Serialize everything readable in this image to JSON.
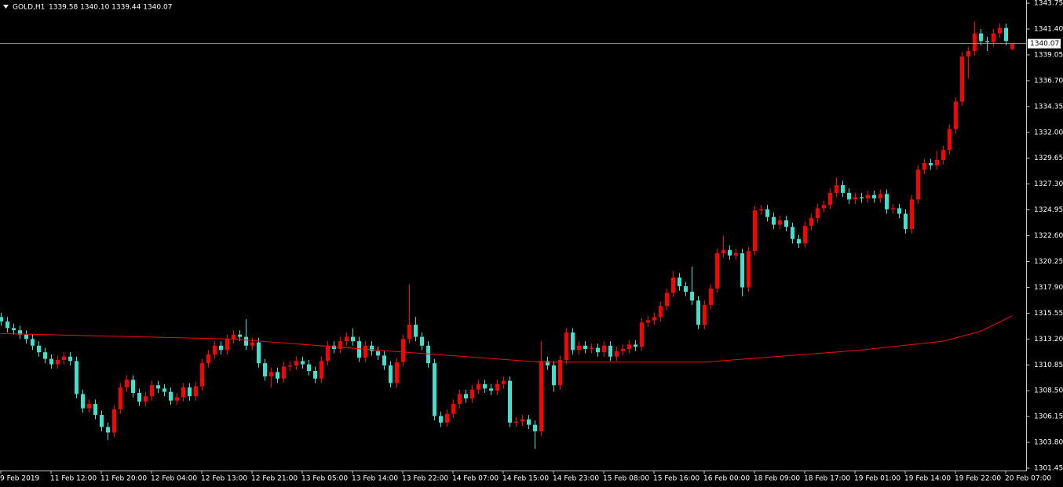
{
  "chart_data": {
    "type": "candlestick",
    "header": {
      "symbol": "GOLD,H1",
      "quote": "1339.58 1340.10 1339.44 1340.07"
    },
    "categories": [
      "9 Feb 2019",
      null,
      null,
      null,
      null,
      null,
      null,
      null,
      "11 Feb 12:00",
      null,
      null,
      null,
      null,
      null,
      null,
      null,
      "11 Feb 20:00",
      null,
      null,
      null,
      null,
      null,
      null,
      null,
      "12 Feb 04:00",
      null,
      null,
      null,
      null,
      null,
      null,
      null,
      "12 Feb 13:00",
      null,
      null,
      null,
      null,
      null,
      null,
      null,
      "12 Feb 21:00",
      null,
      null,
      null,
      null,
      null,
      null,
      null,
      "13 Feb 05:00",
      null,
      null,
      null,
      null,
      null,
      null,
      null,
      "13 Feb 14:00",
      null,
      null,
      null,
      null,
      null,
      null,
      null,
      "13 Feb 22:00",
      null,
      null,
      null,
      null,
      null,
      null,
      null,
      "14 Feb 07:00",
      null,
      null,
      null,
      null,
      null,
      null,
      null,
      "14 Feb 15:00",
      null,
      null,
      null,
      null,
      null,
      null,
      null,
      "14 Feb 23:00",
      null,
      null,
      null,
      null,
      null,
      null,
      null,
      "15 Feb 08:00",
      null,
      null,
      null,
      null,
      null,
      null,
      null,
      "15 Feb 16:00",
      null,
      null,
      null,
      null,
      null,
      null,
      null,
      "16 Feb 00:00",
      null,
      null,
      null,
      null,
      null,
      null,
      null,
      "18 Feb 09:00",
      null,
      null,
      null,
      null,
      null,
      null,
      null,
      "18 Feb 17:00",
      null,
      null,
      null,
      null,
      null,
      null,
      null,
      "19 Feb 01:00",
      null,
      null,
      null,
      null,
      null,
      null,
      null,
      "19 Feb 14:00",
      null,
      null,
      null,
      null,
      null,
      null,
      null,
      "19 Feb 22:00",
      null,
      null,
      null,
      null,
      null,
      null,
      null,
      "20 Feb 07:00",
      null
    ],
    "open": [
      1315.2,
      1314.8,
      1314.2,
      1314.0,
      1313.6,
      1313.2,
      1312.6,
      1312.0,
      1311.4,
      1310.9,
      1311.3,
      1311.6,
      1311.2,
      1308.2,
      1306.9,
      1307.3,
      1306.3,
      1305.2,
      1304.7,
      1306.8,
      1308.8,
      1309.5,
      1308.3,
      1307.5,
      1308.0,
      1309.0,
      1308.7,
      1308.4,
      1307.6,
      1307.9,
      1308.8,
      1308.0,
      1308.9,
      1311.0,
      1311.8,
      1312.6,
      1312.2,
      1313.2,
      1313.6,
      1313.4,
      1312.6,
      1312.9,
      1311.0,
      1309.8,
      1310.2,
      1309.6,
      1310.7,
      1310.8,
      1311.2,
      1310.9,
      1310.3,
      1309.6,
      1311.2,
      1312.6,
      1312.3,
      1313.0,
      1313.4,
      1313.0,
      1311.5,
      1312.6,
      1312.1,
      1311.7,
      1310.8,
      1309.2,
      1311.1,
      1313.2,
      1314.5,
      1313.4,
      1312.6,
      1311.0,
      1306.2,
      1305.6,
      1306.4,
      1307.3,
      1308.2,
      1307.8,
      1308.6,
      1309.1,
      1308.7,
      1308.5,
      1309.1,
      1309.4,
      1305.6,
      1305.7,
      1305.9,
      1305.4,
      1304.8,
      1311.2,
      1310.8,
      1309.0,
      1311.3,
      1313.8,
      1312.2,
      1312.6,
      1312.3,
      1312.4,
      1312.0,
      1312.6,
      1311.6,
      1312.1,
      1312.3,
      1312.7,
      1312.5,
      1314.7,
      1314.9,
      1315.2,
      1316.2,
      1317.4,
      1318.8,
      1318.0,
      1317.5,
      1316.7,
      1314.5,
      1316.3,
      1317.8,
      1321.0,
      1321.3,
      1320.8,
      1321.0,
      1317.9,
      1321.2,
      1324.9,
      1325.0,
      1324.3,
      1323.6,
      1324.0,
      1323.4,
      1322.3,
      1321.9,
      1323.5,
      1324.2,
      1325.1,
      1325.4,
      1326.5,
      1327.2,
      1326.5,
      1325.9,
      1326.1,
      1326.0,
      1326.3,
      1326.0,
      1326.4,
      1325.0,
      1325.1,
      1324.6,
      1323.2,
      1325.9,
      1328.6,
      1329.2,
      1329.0,
      1329.5,
      1330.4,
      1332.3,
      1334.8,
      1338.9,
      1339.4,
      1341.0,
      1340.3,
      1340.2,
      1341.0,
      1341.5,
      1339.58
    ],
    "high": [
      1315.6,
      1315.2,
      1314.6,
      1314.4,
      1314.0,
      1313.6,
      1313.0,
      1312.4,
      1311.8,
      1311.7,
      1312.0,
      1312.0,
      1311.6,
      1308.6,
      1307.7,
      1307.7,
      1306.7,
      1305.6,
      1307.2,
      1309.2,
      1309.9,
      1309.9,
      1308.7,
      1308.4,
      1309.4,
      1309.4,
      1309.1,
      1308.8,
      1308.3,
      1309.2,
      1309.2,
      1309.3,
      1311.4,
      1312.2,
      1313.0,
      1313.0,
      1313.6,
      1314.0,
      1314.0,
      1315.0,
      1313.3,
      1313.3,
      1311.4,
      1310.6,
      1310.6,
      1311.1,
      1311.2,
      1311.6,
      1311.6,
      1311.3,
      1310.7,
      1311.6,
      1313.0,
      1313.0,
      1313.4,
      1313.8,
      1314.2,
      1313.4,
      1313.0,
      1313.0,
      1312.5,
      1312.1,
      1311.2,
      1311.5,
      1313.6,
      1318.2,
      1315.2,
      1313.8,
      1313.0,
      1311.4,
      1306.6,
      1306.8,
      1307.7,
      1308.6,
      1308.6,
      1309.0,
      1309.5,
      1309.5,
      1309.1,
      1309.5,
      1309.8,
      1309.8,
      1306.1,
      1306.3,
      1306.3,
      1305.8,
      1313.0,
      1311.6,
      1311.2,
      1311.7,
      1314.2,
      1314.2,
      1313.0,
      1313.0,
      1312.8,
      1312.8,
      1313.0,
      1313.0,
      1312.5,
      1312.7,
      1313.1,
      1313.1,
      1315.1,
      1315.3,
      1315.6,
      1316.6,
      1317.8,
      1319.4,
      1319.2,
      1318.4,
      1319.8,
      1317.1,
      1316.7,
      1318.2,
      1321.4,
      1322.6,
      1321.7,
      1321.4,
      1321.4,
      1321.6,
      1325.3,
      1325.4,
      1325.4,
      1324.7,
      1324.4,
      1324.4,
      1323.8,
      1322.7,
      1323.9,
      1324.6,
      1325.5,
      1325.8,
      1326.9,
      1327.9,
      1327.6,
      1326.9,
      1326.5,
      1326.5,
      1326.7,
      1326.7,
      1326.8,
      1326.8,
      1325.5,
      1325.5,
      1325.0,
      1326.3,
      1329.0,
      1329.6,
      1329.6,
      1330.3,
      1330.8,
      1332.7,
      1335.2,
      1339.3,
      1339.8,
      1342.1,
      1341.4,
      1340.7,
      1341.4,
      1341.9,
      1341.9,
      1340.1
    ],
    "low": [
      1314.4,
      1313.8,
      1313.6,
      1313.2,
      1312.8,
      1312.2,
      1311.6,
      1311.0,
      1310.5,
      1310.5,
      1310.9,
      1310.8,
      1307.8,
      1306.5,
      1306.5,
      1305.9,
      1304.8,
      1304.0,
      1304.3,
      1306.4,
      1308.4,
      1307.9,
      1307.1,
      1307.1,
      1307.6,
      1308.3,
      1308.0,
      1307.2,
      1307.2,
      1307.5,
      1307.6,
      1307.6,
      1308.5,
      1310.6,
      1311.4,
      1311.8,
      1311.8,
      1312.8,
      1313.0,
      1312.2,
      1312.2,
      1310.6,
      1309.4,
      1308.8,
      1309.2,
      1309.2,
      1310.3,
      1310.4,
      1310.5,
      1309.9,
      1309.2,
      1309.2,
      1310.8,
      1311.9,
      1311.9,
      1312.6,
      1312.6,
      1311.1,
      1311.1,
      1311.7,
      1311.3,
      1310.4,
      1308.8,
      1308.8,
      1310.7,
      1312.8,
      1313.0,
      1312.2,
      1310.6,
      1305.8,
      1305.2,
      1305.2,
      1306.0,
      1306.9,
      1307.4,
      1307.4,
      1308.2,
      1308.3,
      1308.1,
      1308.1,
      1308.7,
      1305.2,
      1305.2,
      1305.3,
      1305.0,
      1303.2,
      1304.4,
      1310.4,
      1308.4,
      1308.6,
      1310.9,
      1311.8,
      1311.8,
      1311.9,
      1311.9,
      1311.6,
      1311.6,
      1311.2,
      1311.2,
      1311.7,
      1311.9,
      1312.1,
      1312.1,
      1314.3,
      1314.5,
      1314.8,
      1315.8,
      1317.0,
      1317.6,
      1317.1,
      1316.3,
      1314.1,
      1314.1,
      1315.9,
      1317.4,
      1320.6,
      1320.4,
      1320.4,
      1317.1,
      1317.5,
      1320.8,
      1324.5,
      1323.9,
      1323.2,
      1323.2,
      1323.0,
      1321.9,
      1321.5,
      1321.5,
      1323.1,
      1323.8,
      1324.7,
      1325.0,
      1326.1,
      1326.1,
      1325.5,
      1325.5,
      1325.6,
      1325.6,
      1325.6,
      1325.6,
      1324.6,
      1324.6,
      1324.2,
      1322.8,
      1322.8,
      1325.5,
      1328.2,
      1328.6,
      1328.6,
      1329.1,
      1330.0,
      1331.9,
      1334.4,
      1336.9,
      1339.0,
      1339.9,
      1339.4,
      1339.8,
      1340.6,
      1339.9,
      1339.44
    ],
    "close": [
      1314.8,
      1314.2,
      1314.0,
      1313.6,
      1313.2,
      1312.6,
      1312.0,
      1311.4,
      1310.9,
      1311.3,
      1311.6,
      1311.2,
      1308.2,
      1306.9,
      1307.3,
      1306.3,
      1305.2,
      1304.7,
      1306.8,
      1308.8,
      1309.5,
      1308.3,
      1307.5,
      1308.0,
      1309.0,
      1308.7,
      1308.4,
      1307.6,
      1307.9,
      1308.8,
      1308.0,
      1308.9,
      1311.0,
      1311.8,
      1312.6,
      1312.2,
      1313.2,
      1313.6,
      1313.4,
      1312.6,
      1312.9,
      1311.0,
      1309.8,
      1310.2,
      1309.6,
      1310.7,
      1310.8,
      1311.2,
      1310.9,
      1310.3,
      1309.6,
      1311.2,
      1312.6,
      1312.3,
      1313.0,
      1313.4,
      1313.0,
      1311.5,
      1312.6,
      1312.1,
      1311.7,
      1310.8,
      1309.2,
      1311.1,
      1313.2,
      1314.5,
      1313.4,
      1312.6,
      1311.0,
      1306.2,
      1305.6,
      1306.4,
      1307.3,
      1308.2,
      1307.8,
      1308.6,
      1309.1,
      1308.7,
      1308.5,
      1309.1,
      1309.4,
      1305.6,
      1305.7,
      1305.9,
      1305.4,
      1304.8,
      1311.2,
      1310.8,
      1309.0,
      1311.3,
      1313.8,
      1312.2,
      1312.6,
      1312.3,
      1312.4,
      1312.0,
      1312.6,
      1311.6,
      1312.1,
      1312.3,
      1312.7,
      1312.5,
      1314.7,
      1314.9,
      1315.2,
      1316.2,
      1317.4,
      1318.8,
      1318.0,
      1317.5,
      1316.7,
      1314.5,
      1316.3,
      1317.8,
      1321.0,
      1321.3,
      1320.8,
      1321.0,
      1317.9,
      1321.2,
      1324.9,
      1325.0,
      1324.3,
      1323.6,
      1324.0,
      1323.4,
      1322.3,
      1321.9,
      1323.5,
      1324.2,
      1325.1,
      1325.4,
      1326.5,
      1327.2,
      1326.5,
      1325.9,
      1326.1,
      1326.0,
      1326.3,
      1326.0,
      1326.4,
      1325.0,
      1325.1,
      1324.6,
      1323.2,
      1325.9,
      1328.6,
      1329.2,
      1329.0,
      1329.5,
      1330.4,
      1332.3,
      1334.8,
      1338.9,
      1339.4,
      1341.0,
      1340.3,
      1340.2,
      1341.0,
      1341.5,
      1340.3,
      1340.07
    ],
    "up_color": "#ff0000",
    "down_color": "#40e0d0",
    "moving_average": {
      "color": "#ff0000",
      "x": [
        0,
        37,
        62,
        86,
        112,
        137,
        150,
        156,
        161
      ],
      "values": [
        1313.7,
        1313.2,
        1312.1,
        1311.1,
        1311.1,
        1312.2,
        1313.0,
        1313.9,
        1315.3
      ]
    },
    "last_price": 1340.07,
    "ylim": [
      1301.24,
      1344.04
    ],
    "yticks": [
      1343.75,
      {
        "value": 1341.4,
        "label": "1341.40"
      },
      1339.05,
      {
        "value": 1336.7,
        "label": "1336.70"
      },
      1334.35,
      {
        "value": 1332,
        "label": "1332.00"
      },
      1329.65,
      {
        "value": 1327.3,
        "label": "1327.30"
      },
      1324.95,
      {
        "value": 1322.6,
        "label": "1322.60"
      },
      1320.25,
      {
        "value": 1317.9,
        "label": "1317.90"
      },
      1315.55,
      {
        "value": 1313.2,
        "label": "1313.20"
      },
      1310.85,
      {
        "value": 1308.5,
        "label": "1308.50"
      },
      1306.15,
      {
        "value": 1303.8,
        "label": "1303.80"
      },
      1301.45
    ]
  }
}
